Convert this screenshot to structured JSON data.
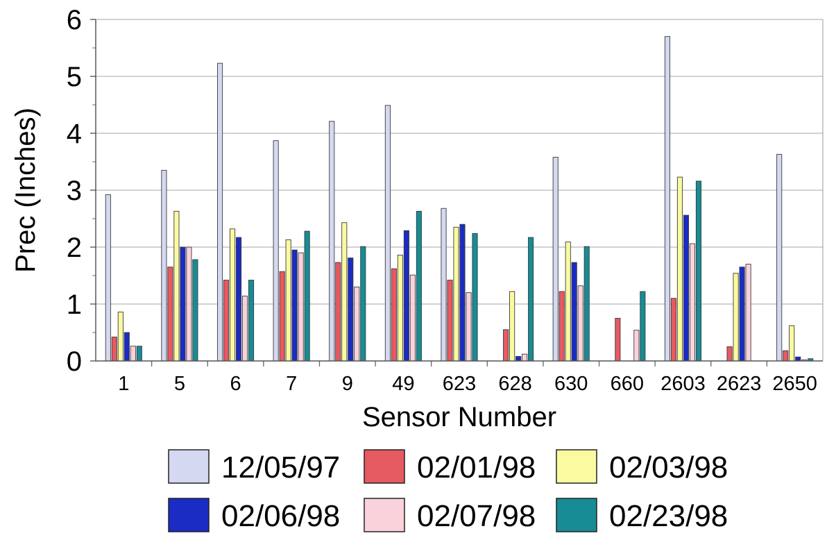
{
  "chart_data": {
    "type": "bar",
    "title": "",
    "xlabel": "Sensor Number",
    "ylabel": "Prec (Inches)",
    "ylim": [
      0,
      6
    ],
    "yticks": [
      "0",
      "1",
      "2",
      "3",
      "4",
      "5",
      "6"
    ],
    "grid": "horizontal",
    "legend_position": "bottom",
    "categories": [
      "1",
      "5",
      "6",
      "7",
      "9",
      "49",
      "623",
      "628",
      "630",
      "660",
      "2603",
      "2623",
      "2650"
    ],
    "series": [
      {
        "name": "12/05/97",
        "color": "#d4d8f0",
        "values": [
          2.92,
          3.35,
          5.23,
          3.87,
          4.21,
          4.49,
          2.68,
          0,
          3.58,
          0,
          5.7,
          0,
          3.63
        ]
      },
      {
        "name": "02/01/98",
        "color": "#e65a62",
        "values": [
          0.42,
          1.65,
          1.42,
          1.57,
          1.73,
          1.62,
          1.42,
          0.55,
          1.22,
          0.75,
          1.1,
          0.25,
          0.18
        ]
      },
      {
        "name": "02/03/98",
        "color": "#fafaa0",
        "values": [
          0.86,
          2.63,
          2.32,
          2.13,
          2.43,
          1.86,
          2.35,
          1.22,
          2.09,
          0,
          3.23,
          1.54,
          0.62
        ]
      },
      {
        "name": "02/06/98",
        "color": "#1a2cc4",
        "values": [
          0.5,
          2.0,
          2.17,
          1.95,
          1.81,
          2.29,
          2.4,
          0.08,
          1.73,
          0,
          2.56,
          1.65,
          0.07
        ]
      },
      {
        "name": "02/07/98",
        "color": "#fad2dc",
        "values": [
          0.26,
          2.0,
          1.14,
          1.9,
          1.3,
          1.51,
          1.2,
          0.12,
          1.32,
          0.54,
          2.06,
          1.7,
          0.02
        ]
      },
      {
        "name": "02/23/98",
        "color": "#178c94",
        "values": [
          0.26,
          1.78,
          1.42,
          2.28,
          2.01,
          2.63,
          2.24,
          2.17,
          2.01,
          1.22,
          3.16,
          0,
          0.04
        ]
      }
    ]
  }
}
